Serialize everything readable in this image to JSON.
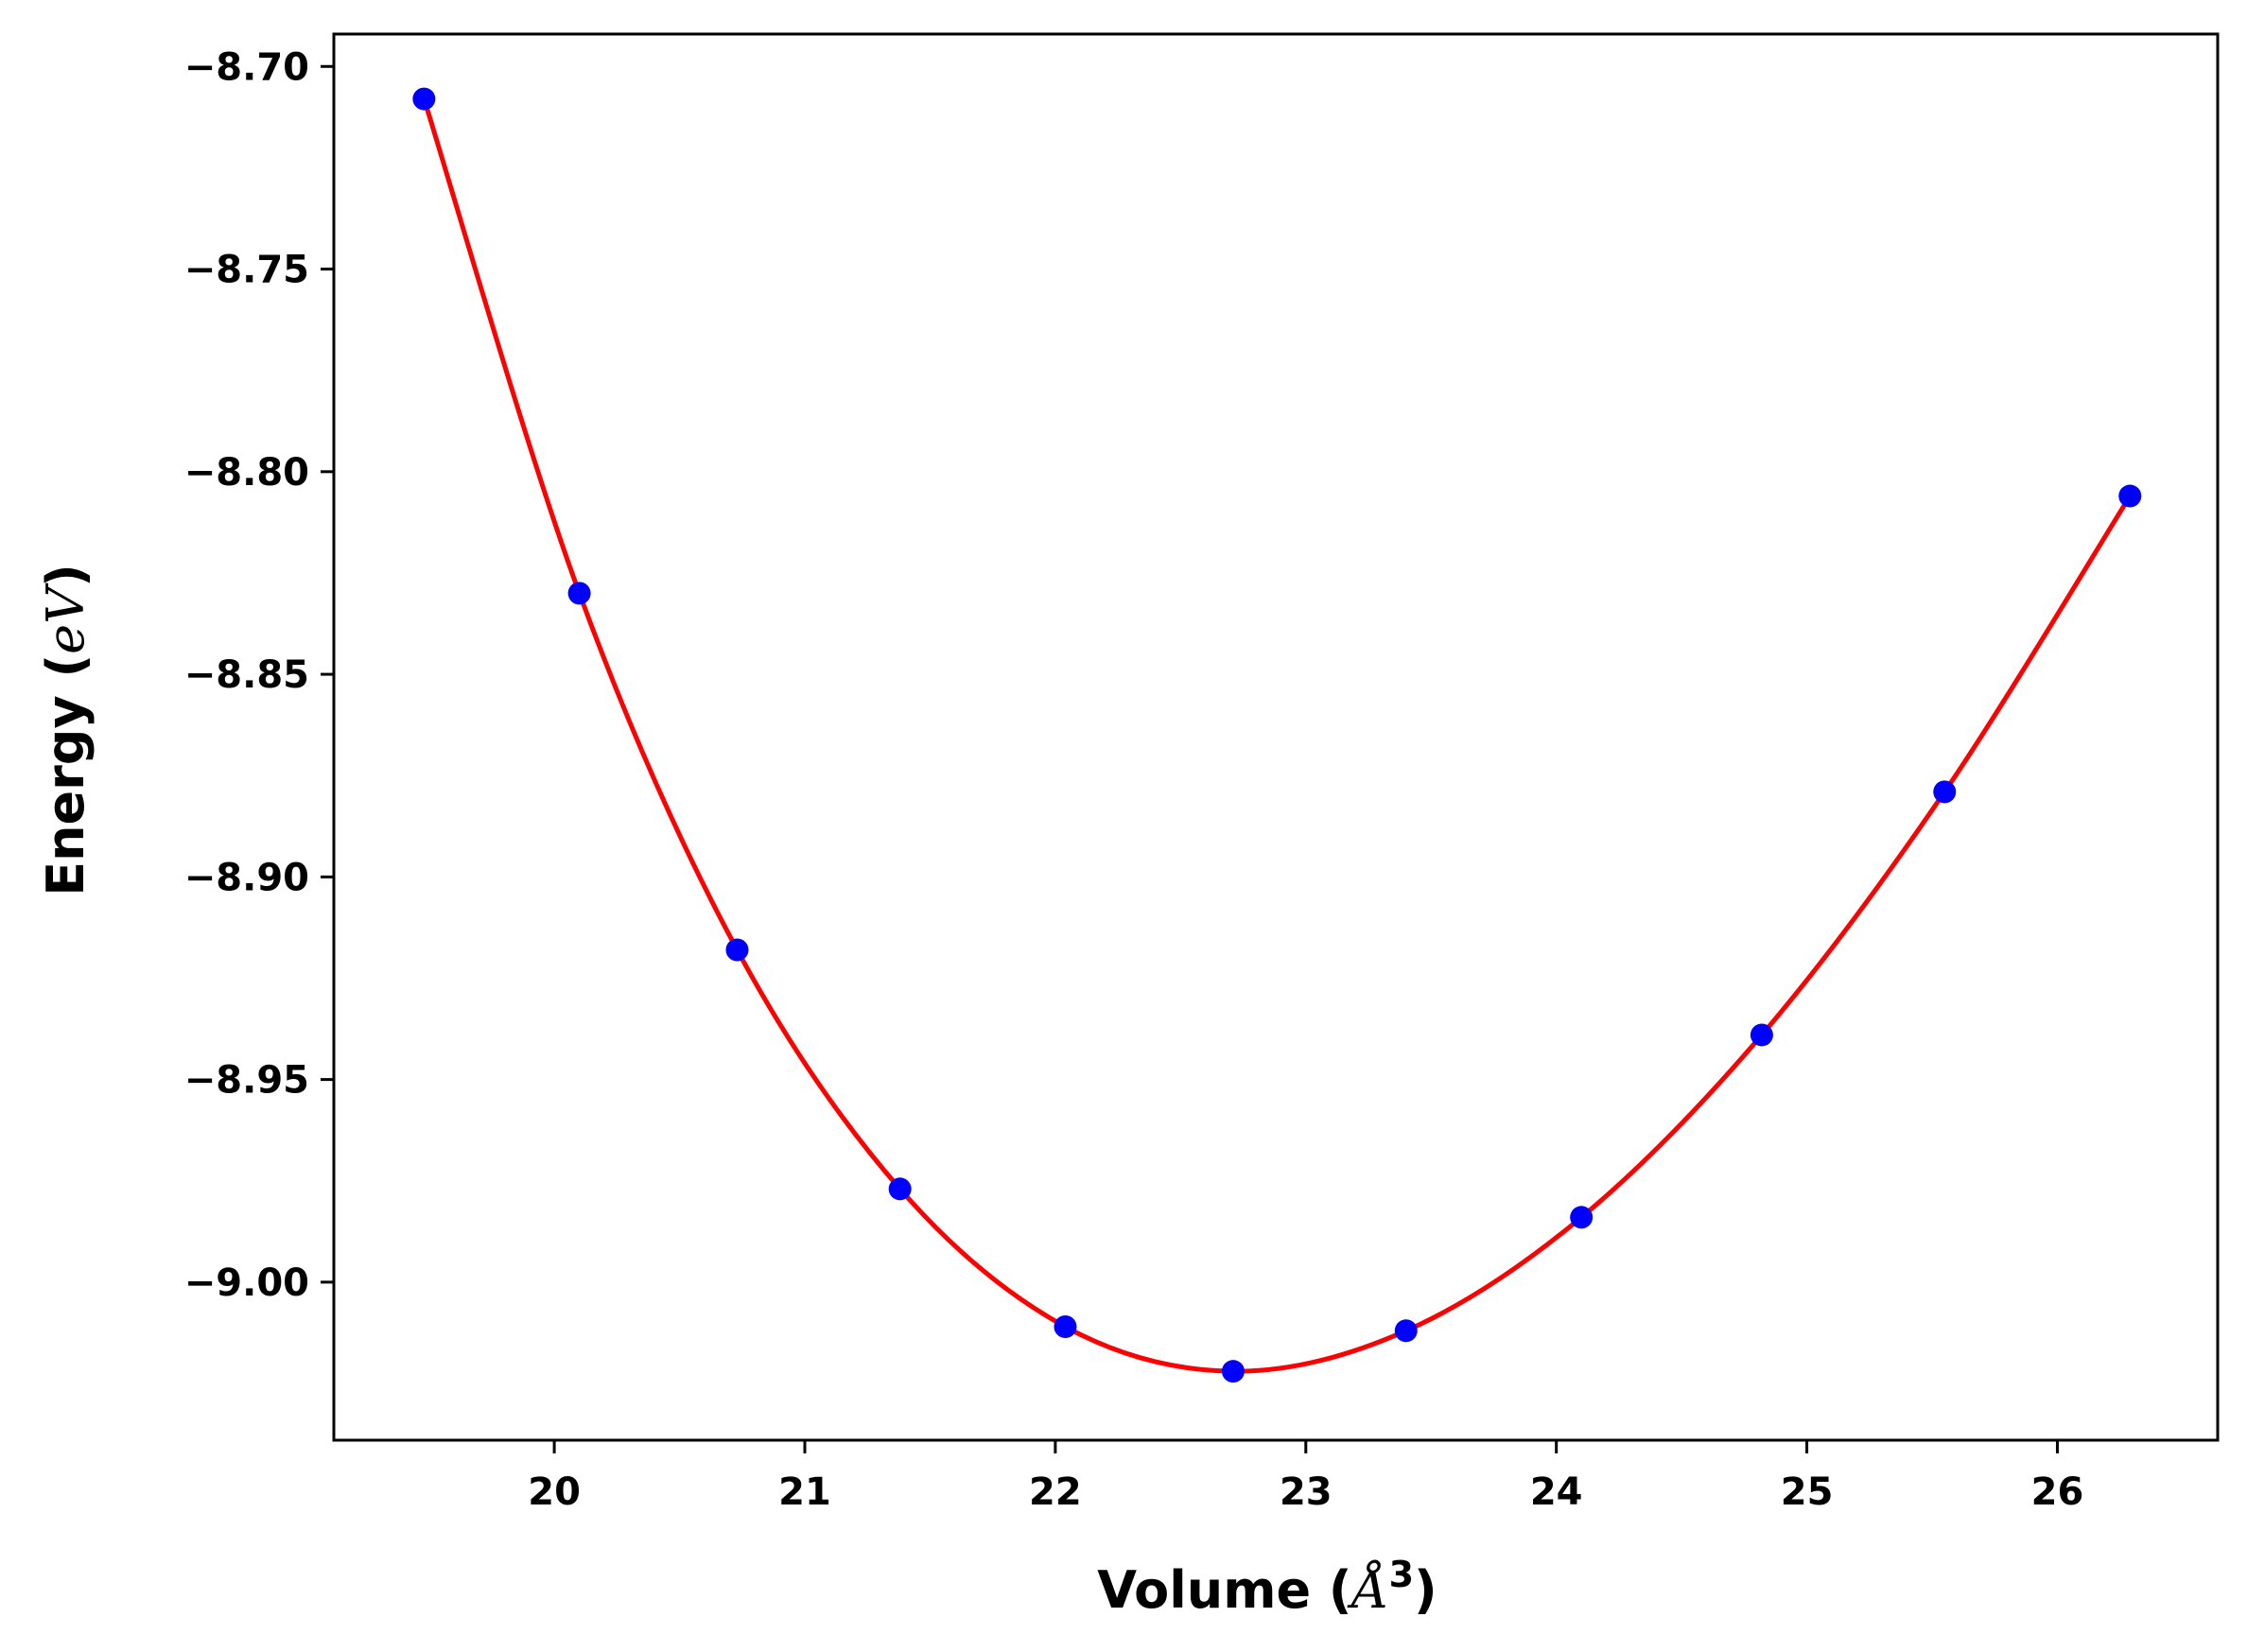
{
  "chart_data": {
    "type": "line",
    "xlabel": "Volume (",
    "xlabel_unit": "Å",
    "xlabel_sup": "3",
    "xlabel_tail": ")",
    "ylabel": "Energy (",
    "ylabel_unit": "eV",
    "ylabel_tail": ")",
    "xlim": [
      19.12,
      26.64
    ],
    "ylim": [
      -9.039,
      -8.692
    ],
    "xticks": [
      20,
      21,
      22,
      23,
      24,
      25,
      26
    ],
    "xtick_labels": [
      "20",
      "21",
      "22",
      "23",
      "24",
      "25",
      "26"
    ],
    "yticks": [
      -8.7,
      -8.75,
      -8.8,
      -8.85,
      -8.9,
      -8.95,
      -9.0
    ],
    "ytick_labels": [
      "−8.70",
      "−8.75",
      "−8.80",
      "−8.85",
      "−8.90",
      "−8.95",
      "−9.00"
    ],
    "grid": false,
    "series": [
      {
        "kind": "scatter",
        "color": "#0000ff",
        "x": [
          19.48,
          20.1,
          20.73,
          21.38,
          22.04,
          22.71,
          23.4,
          24.1,
          24.82,
          25.55,
          26.29
        ],
        "y": [
          -8.708,
          -8.83,
          -8.918,
          -8.977,
          -9.011,
          -9.022,
          -9.012,
          -8.984,
          -8.939,
          -8.879,
          -8.806
        ]
      },
      {
        "kind": "fit",
        "color": "#ff0000",
        "x": [
          19.48,
          20.1,
          20.73,
          21.38,
          22.04,
          22.71,
          23.4,
          24.1,
          24.82,
          25.55,
          26.29
        ],
        "y": [
          -8.708,
          -8.83,
          -8.918,
          -8.977,
          -9.011,
          -9.022,
          -9.012,
          -8.984,
          -8.939,
          -8.879,
          -8.806
        ]
      }
    ]
  }
}
